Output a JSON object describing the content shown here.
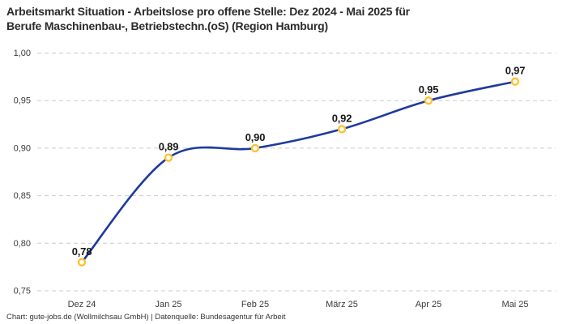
{
  "title": {
    "line1": "Arbeitsmarkt Situation - Arbeitslose pro offene Stelle: Dez 2024 - Mai 2025 für",
    "line2": "Berufe Maschinenbau-, Betriebstechn.(oS) (Region Hamburg)"
  },
  "footer": "Chart: gute-jobs.de (Wollmilchsau GmbH) | Datenquelle: Bundesagentur für Arbeit",
  "colors": {
    "line": "#1e3a9e",
    "marker_ring": "#fcc332",
    "marker_fill": "#ffffff",
    "grid": "#cbcbcb",
    "axis_text": "#3a3a3a",
    "label_text": "#161616",
    "title_text": "#2b2b2b",
    "background": "#ffffff"
  },
  "chart_data": {
    "type": "line",
    "title": "Arbeitsmarkt Situation - Arbeitslose pro offene Stelle: Dez 2024 - Mai 2025 für Berufe Maschinenbau-, Betriebstechn.(oS) (Region Hamburg)",
    "categories": [
      "Dez 24",
      "Jan 25",
      "Feb 25",
      "März 25",
      "Apr 25",
      "Mai 25"
    ],
    "values": [
      0.78,
      0.89,
      0.9,
      0.92,
      0.95,
      0.97
    ],
    "value_labels": [
      "0,78",
      "0,89",
      "0,90",
      "0,92",
      "0,95",
      "0,97"
    ],
    "xlabel": "",
    "ylabel": "",
    "ylim": [
      0.75,
      1.0
    ],
    "yticks": [
      0.75,
      0.8,
      0.85,
      0.9,
      0.95,
      1.0
    ],
    "ytick_labels": [
      "0,75",
      "0,80",
      "0,85",
      "0,90",
      "0,95",
      "1,00"
    ],
    "grid": "horizontal-dashed",
    "legend": "none",
    "line_style": "smooth",
    "marker_style": "open-circle-gold"
  }
}
